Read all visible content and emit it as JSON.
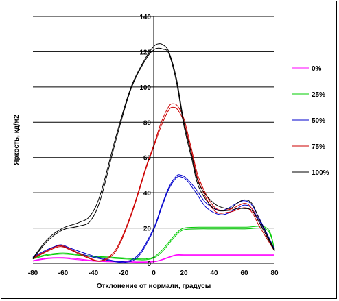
{
  "chart_data": {
    "type": "line",
    "title": "",
    "xlabel": "Отклонение от нормали, градусы",
    "ylabel": "Яркость, кд/м2",
    "xlim": [
      -80,
      80
    ],
    "ylim": [
      0,
      140
    ],
    "xticks": [
      -80,
      -60,
      -40,
      -20,
      0,
      20,
      40,
      60,
      80
    ],
    "yticks": [
      0,
      20,
      40,
      60,
      80,
      100,
      120,
      140
    ],
    "grid": "horizontal",
    "legend_position": "right",
    "series": [
      {
        "name": "0%",
        "color": "#ff00ff",
        "curves": [
          {
            "x": [
              -80,
              -70,
              -60,
              -50,
              -40,
              -30,
              -20,
              -10,
              0,
              5,
              10,
              15,
              20,
              40,
              60,
              80
            ],
            "y": [
              1.5,
              3.0,
              3.2,
              2.5,
              1.5,
              1.2,
              1.0,
              0.8,
              1.0,
              2.0,
              3.5,
              4.8,
              4.8,
              4.8,
              4.8,
              4.8
            ]
          },
          {
            "x": [
              -80,
              -70,
              -60,
              -50,
              -40,
              -30,
              -20,
              -10,
              0,
              5,
              10,
              15,
              20,
              40,
              60,
              80
            ],
            "y": [
              1.2,
              2.6,
              2.8,
              2.0,
              1.2,
              0.9,
              0.8,
              0.6,
              0.8,
              1.8,
              3.2,
              4.5,
              4.5,
              4.5,
              4.5,
              4.5
            ]
          }
        ]
      },
      {
        "name": "25%",
        "color": "#00cc00",
        "curves": [
          {
            "x": [
              -80,
              -70,
              -60,
              -50,
              -40,
              -30,
              -20,
              -10,
              -5,
              0,
              5,
              10,
              15,
              20,
              30,
              40,
              60,
              75,
              80
            ],
            "y": [
              3.0,
              5.0,
              5.8,
              5.0,
              4.0,
              3.5,
              3.0,
              2.5,
              2.5,
              3.5,
              7.0,
              12.0,
              17.0,
              20.0,
              20.5,
              20.5,
              20.5,
              20.0,
              8.0
            ]
          },
          {
            "x": [
              -80,
              -70,
              -60,
              -50,
              -40,
              -30,
              -20,
              -10,
              -5,
              0,
              5,
              10,
              15,
              20,
              30,
              40,
              60,
              75,
              80
            ],
            "y": [
              2.5,
              4.5,
              5.2,
              4.5,
              3.6,
              3.0,
              2.5,
              2.0,
              2.0,
              3.0,
              6.0,
              11.0,
              16.0,
              19.0,
              19.5,
              19.5,
              19.5,
              19.0,
              7.5
            ]
          }
        ]
      },
      {
        "name": "50%",
        "color": "#0000cc",
        "curves": [
          {
            "x": [
              -80,
              -70,
              -62,
              -55,
              -45,
              -35,
              -20,
              -10,
              0,
              5,
              10,
              15,
              18,
              22,
              28,
              35,
              45,
              55,
              60,
              65,
              72,
              80
            ],
            "y": [
              3.0,
              7.5,
              10.5,
              8.5,
              5.5,
              3.0,
              1.0,
              5.0,
              20.0,
              32.0,
              43.0,
              49.5,
              50.0,
              48.0,
              42.0,
              34.0,
              30.0,
              34.0,
              35.5,
              33.0,
              22.0,
              8.0
            ]
          },
          {
            "x": [
              -80,
              -70,
              -62,
              -55,
              -45,
              -35,
              -20,
              -10,
              0,
              5,
              10,
              15,
              18,
              22,
              28,
              35,
              45,
              55,
              60,
              65,
              72,
              80
            ],
            "y": [
              3.5,
              8.0,
              10.0,
              7.5,
              4.5,
              2.5,
              0.5,
              4.0,
              19.0,
              31.0,
              42.0,
              48.5,
              49.0,
              47.0,
              40.0,
              31.5,
              27.5,
              31.0,
              33.0,
              31.0,
              21.0,
              7.5
            ]
          }
        ]
      },
      {
        "name": "75%",
        "color": "#cc0000",
        "curves": [
          {
            "x": [
              -80,
              -70,
              -62,
              -55,
              -45,
              -35,
              -25,
              -15,
              -5,
              0,
              5,
              10,
              13,
              16,
              20,
              25,
              30,
              40,
              50,
              60,
              65,
              70,
              80
            ],
            "y": [
              3.0,
              7.5,
              10.0,
              8.0,
              4.0,
              1.5,
              8.0,
              28.0,
              55.0,
              67.0,
              80.0,
              89.0,
              90.5,
              89.0,
              82.0,
              65.0,
              48.0,
              32.0,
              30.5,
              34.0,
              31.0,
              23.0,
              7.5
            ]
          },
          {
            "x": [
              -80,
              -70,
              -62,
              -55,
              -45,
              -35,
              -25,
              -15,
              -5,
              0,
              5,
              10,
              13,
              16,
              20,
              25,
              30,
              40,
              50,
              60,
              65,
              70,
              80
            ],
            "y": [
              2.5,
              7.0,
              9.5,
              7.5,
              3.5,
              1.2,
              7.0,
              27.0,
              54.0,
              66.0,
              78.0,
              87.0,
              88.5,
              87.0,
              80.0,
              63.0,
              46.0,
              30.0,
              29.0,
              31.5,
              29.0,
              21.0,
              7.0
            ]
          }
        ]
      },
      {
        "name": "100%",
        "color": "#000000",
        "curves": [
          {
            "x": [
              -80,
              -70,
              -60,
              -50,
              -42,
              -35,
              -25,
              -15,
              -5,
              0,
              3,
              6,
              10,
              15,
              20,
              25,
              30,
              40,
              50,
              55,
              60,
              65,
              70,
              80
            ],
            "y": [
              3.0,
              14.0,
              20.0,
              23.0,
              27.0,
              40.0,
              72.0,
              100.0,
              117.0,
              123.0,
              124.5,
              124.0,
              120.0,
              105.0,
              80.0,
              62.0,
              45.0,
              34.0,
              31.0,
              34.0,
              36.0,
              34.0,
              25.0,
              7.5
            ]
          },
          {
            "x": [
              -80,
              -70,
              -60,
              -50,
              -42,
              -35,
              -25,
              -15,
              -5,
              0,
              3,
              6,
              10,
              15,
              20,
              25,
              30,
              40,
              50,
              55,
              60,
              65,
              70,
              80
            ],
            "y": [
              2.5,
              13.0,
              19.0,
              21.0,
              24.0,
              37.0,
              70.0,
              99.0,
              116.0,
              121.0,
              122.0,
              121.5,
              119.0,
              103.0,
              78.0,
              60.0,
              43.0,
              31.0,
              30.0,
              31.0,
              31.0,
              30.0,
              23.0,
              7.0
            ]
          }
        ]
      }
    ]
  }
}
